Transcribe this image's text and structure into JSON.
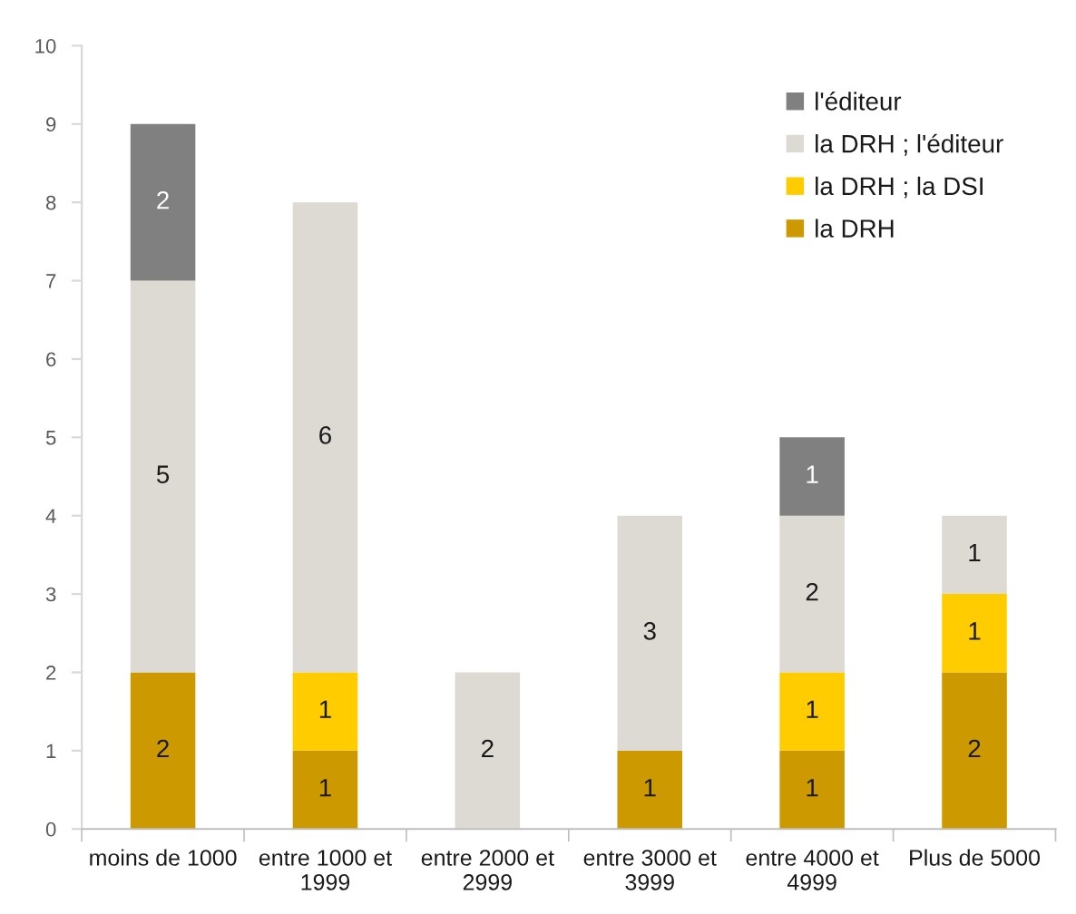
{
  "chart_data": {
    "type": "bar",
    "stacked": true,
    "categories": [
      "moins de 1000",
      "entre 1000 et 1999",
      "entre 2000 et 2999",
      "entre 3000 et 3999",
      "entre 4000 et 4999",
      "Plus de 5000"
    ],
    "series": [
      {
        "name": "la DRH",
        "color": "#cc9900",
        "values": [
          2,
          1,
          null,
          1,
          1,
          2
        ]
      },
      {
        "name": "la DRH ; la DSI",
        "color": "#ffcc00",
        "values": [
          null,
          1,
          null,
          null,
          1,
          1
        ]
      },
      {
        "name": "la DRH ; l'éditeur",
        "color": "#ddd9d3",
        "values": [
          5,
          6,
          2,
          3,
          2,
          1
        ]
      },
      {
        "name": "l'éditeur",
        "color": "#808080",
        "values": [
          2,
          null,
          null,
          null,
          1,
          null
        ]
      }
    ],
    "ylim": [
      0,
      10
    ],
    "yticks": [
      0,
      1,
      2,
      3,
      4,
      5,
      6,
      7,
      8,
      9,
      10
    ],
    "data_labels": true,
    "legend": "top right"
  }
}
